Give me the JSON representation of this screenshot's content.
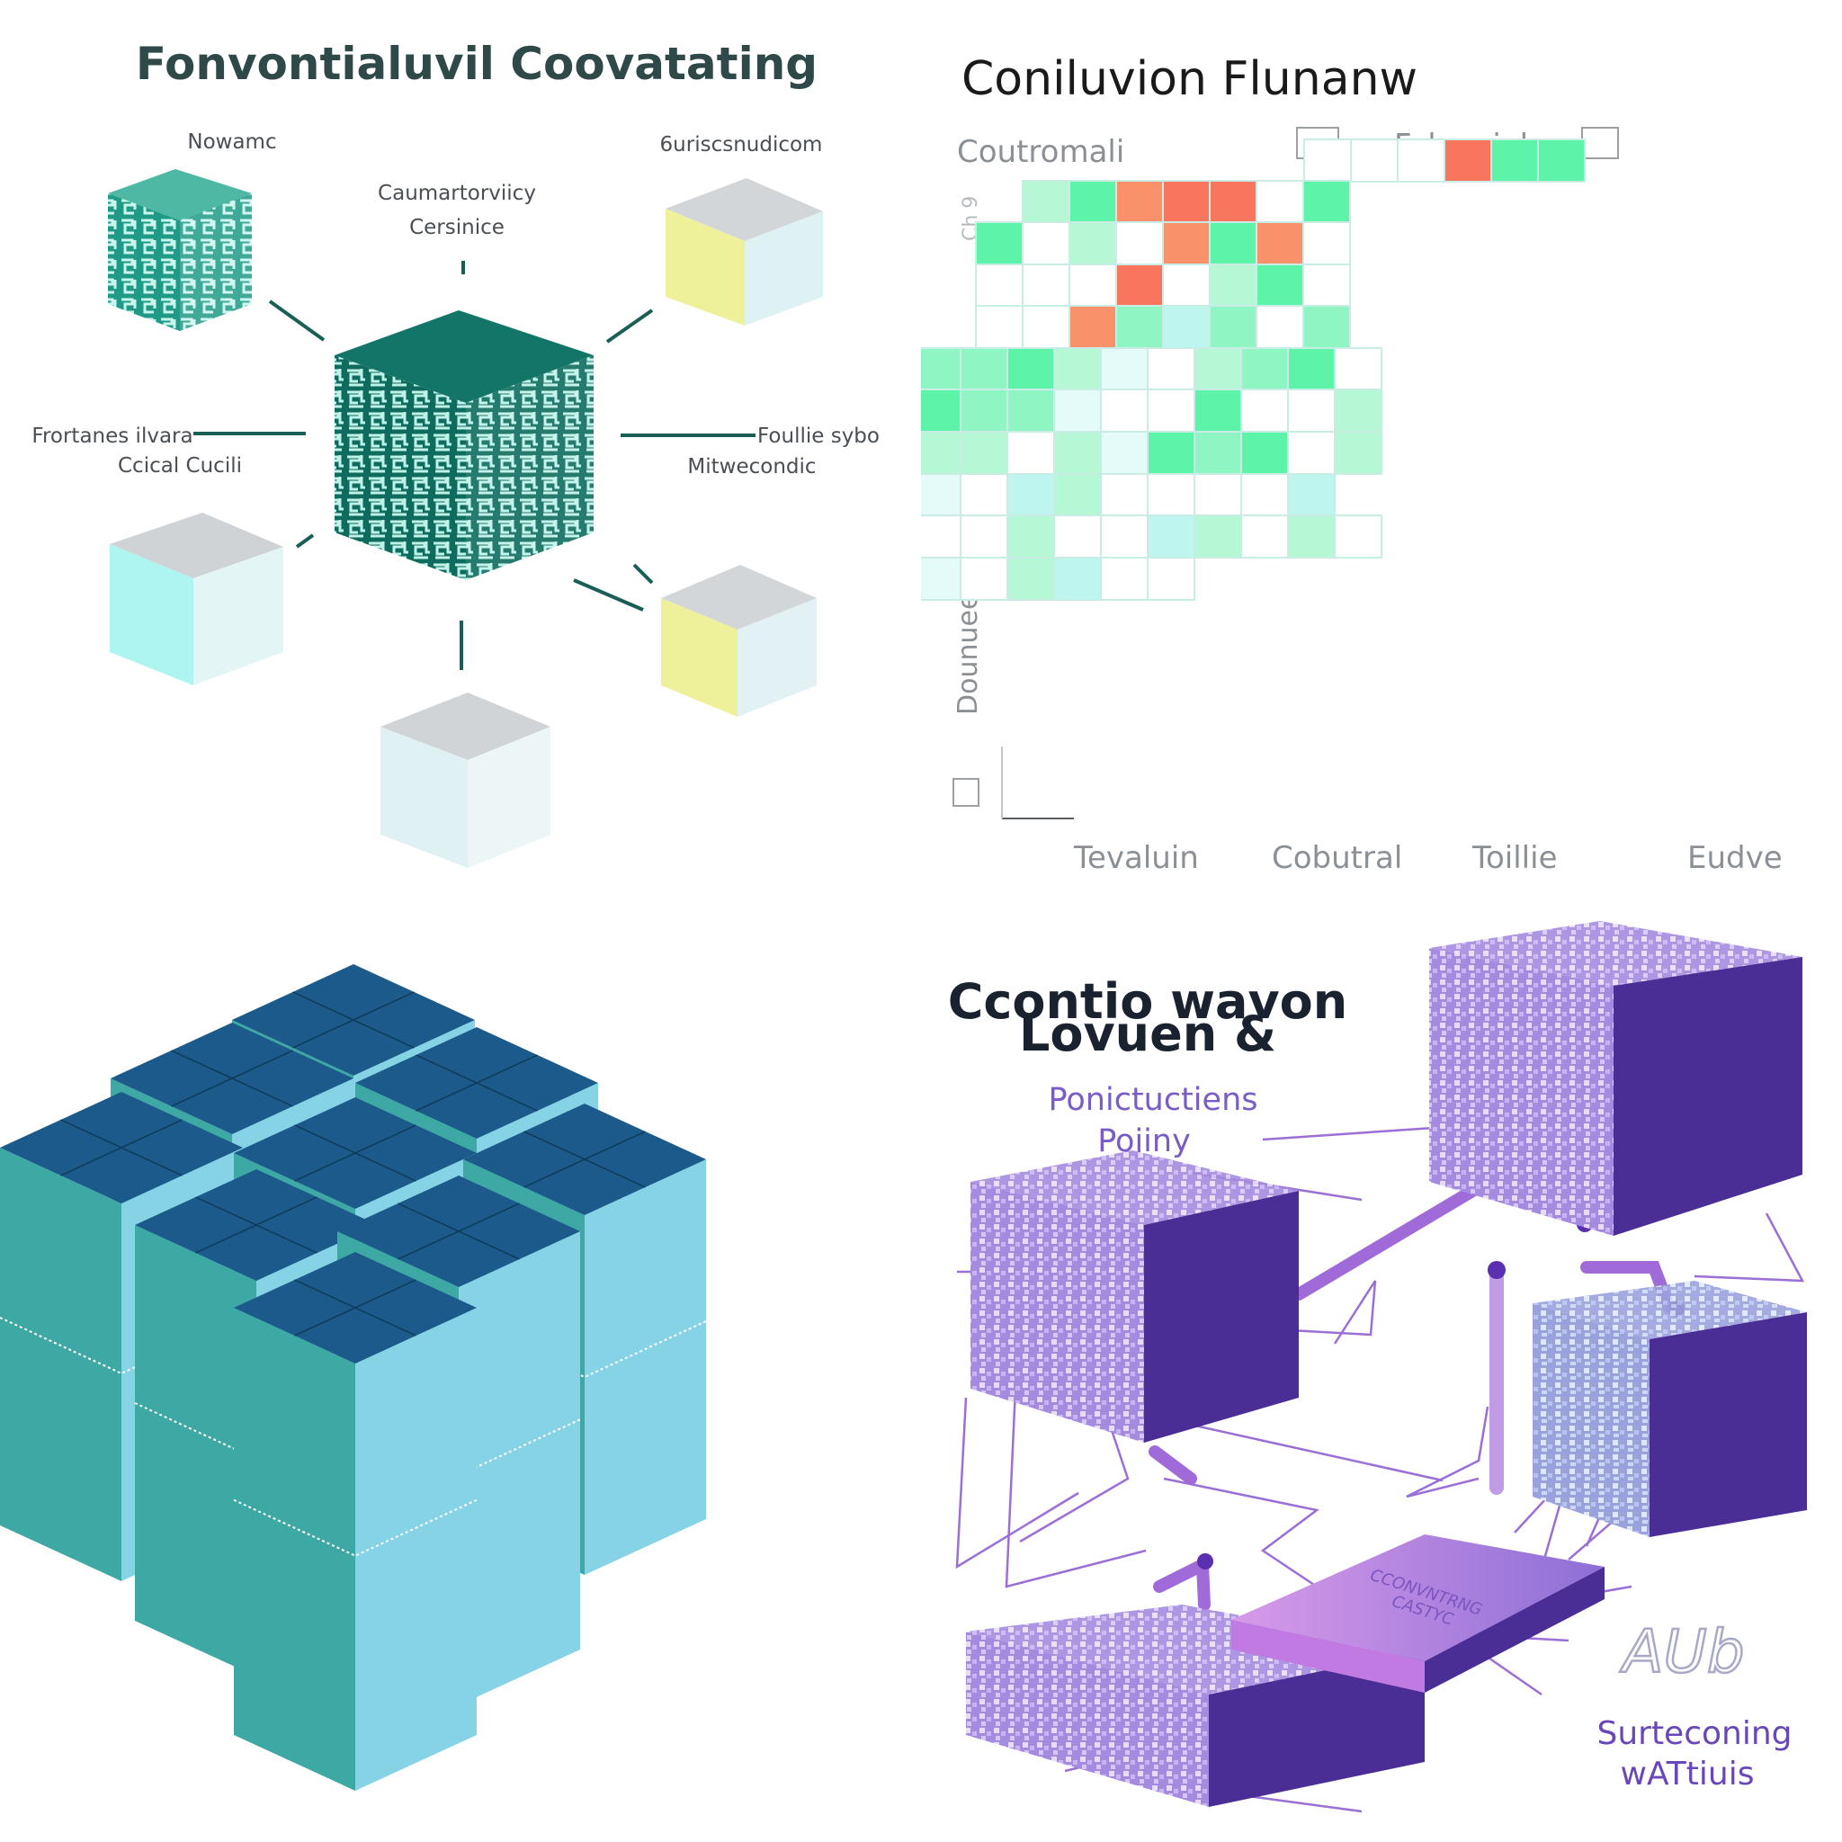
{
  "panel1": {
    "title": "Fonvontialuvil Coovatating",
    "labels": {
      "top_left": "Nowamc",
      "top_right": "6uriscsnudicom",
      "center_top_line1": "Caumartorviicy",
      "center_top_line2": "Cersinice",
      "left_line1": "Frortanes ilvara",
      "left_line2": "Ccical Cucili",
      "right_line1": "Foullie sybo",
      "right_line2": "Mitwecondic"
    },
    "colors": {
      "dark_teal": "#0f6b5e",
      "teal": "#1f9a86",
      "pale_cyan": "#aef5f2",
      "pale_yellow": "#eef09a",
      "gray_top": "#cfd3d6"
    }
  },
  "panel2": {
    "title": "Coniluvion Flunanw",
    "legend": [
      "Coutromali",
      "Falgevial"
    ],
    "ylabel": "Dounuee rwwoiopgorse",
    "ytick_top": "Ch 9",
    "xlabels": [
      "Tevaluin",
      "Cobutral",
      "Toillie",
      "Eudve"
    ]
  },
  "panel3": {
    "colors": {
      "top": "#1b5a8a",
      "side_left": "#3ea9a4",
      "side_right": "#86d3e6"
    }
  },
  "panel4": {
    "title_line1": "Ccontio wavon",
    "title_line2": "Lovuen &",
    "label_left_line1": "Ponictuctiens",
    "label_left_line2": "Pojiny",
    "center_chip_line1": "CCONVNTRNG",
    "center_chip_line2": "CASTYC",
    "label_bottom_line1": "Surteconing",
    "label_bottom_line2": "wATtiuis",
    "scribble": "AUb",
    "colors": {
      "block_front": "#a98ae0",
      "block_side": "#4b2d96",
      "line": "#9a6fd6",
      "chip": "#c88ae8"
    }
  }
}
